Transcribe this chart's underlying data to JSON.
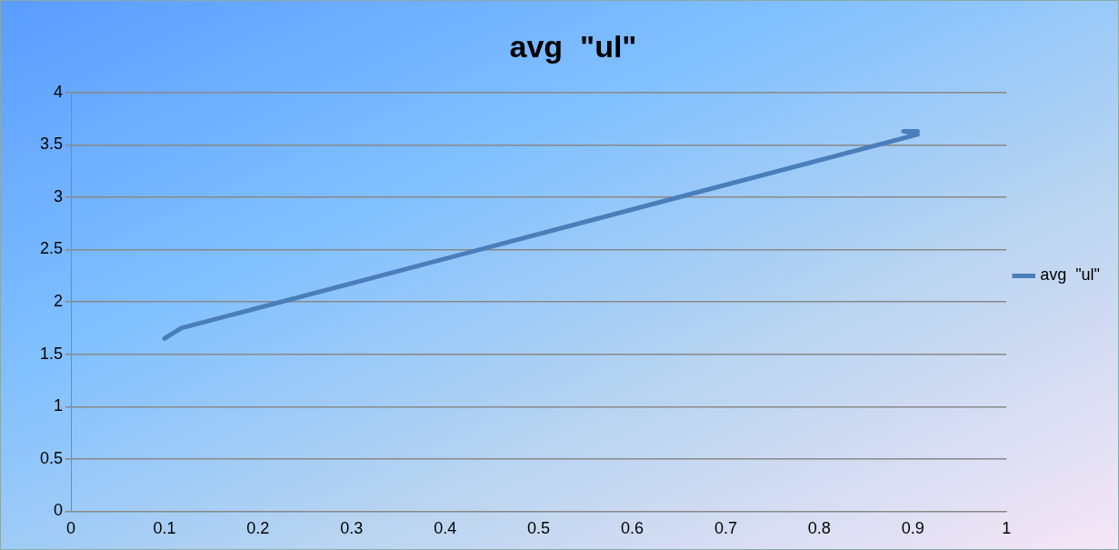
{
  "chart_data": {
    "type": "line",
    "title": "avg  \"ul\"",
    "series": [
      {
        "name": "avg  \"ul\"",
        "color": "#4a7ebb",
        "x": [
          0.1,
          0.118,
          0.905,
          0.89,
          0.905
        ],
        "values": [
          1.65,
          1.75,
          3.6,
          3.63,
          3.63
        ]
      }
    ],
    "xlim": [
      0,
      1
    ],
    "xticks": [
      0,
      0.1,
      0.2,
      0.3,
      0.4,
      0.5,
      0.6,
      0.7,
      0.8,
      0.9,
      1
    ],
    "ylim": [
      0,
      4
    ],
    "yticks": [
      0,
      0.5,
      1,
      1.5,
      2,
      2.5,
      3,
      3.5,
      4
    ],
    "grid": "y",
    "legend": "right",
    "marker": "none",
    "line_style": "solid"
  }
}
